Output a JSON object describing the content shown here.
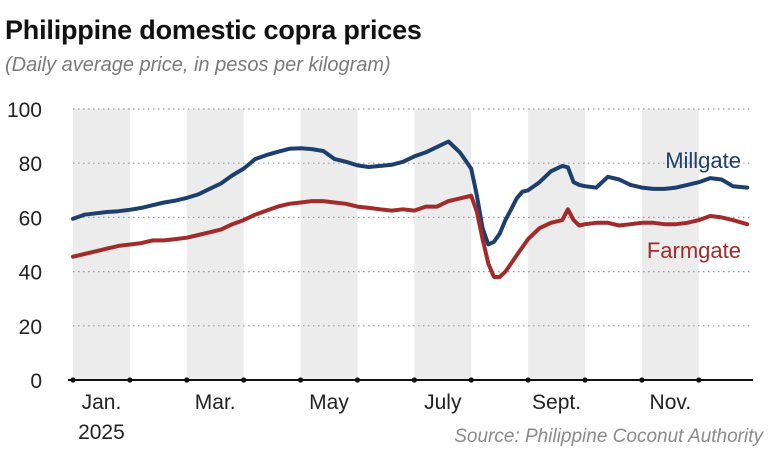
{
  "chart_data": {
    "type": "line",
    "title": "Philippine domestic copra prices",
    "subtitle": "(Daily average price, in pesos per kilogram)",
    "source": "Source: Philippine Coconut Authority",
    "ylim": [
      0,
      100
    ],
    "yticks": [
      0,
      20,
      40,
      60,
      80,
      100
    ],
    "xlim": [
      0,
      11.9
    ],
    "xticks": [
      {
        "label": "Jan.",
        "sublabel": "2025",
        "month": 0.5
      },
      {
        "label": "Mar.",
        "sublabel": "",
        "month": 2.5
      },
      {
        "label": "May",
        "sublabel": "",
        "month": 4.5
      },
      {
        "label": "July",
        "sublabel": "",
        "month": 6.5
      },
      {
        "label": "Sept.",
        "sublabel": "",
        "month": 8.5
      },
      {
        "label": "Nov.",
        "sublabel": "",
        "month": 10.5
      }
    ],
    "shaded_months": [
      0,
      2,
      4,
      6,
      8,
      10
    ],
    "grid": "horizontal-dotted",
    "series": [
      {
        "name": "Millgate",
        "color": "#1d3f6e",
        "x": [
          0,
          0.2,
          0.4,
          0.6,
          0.8,
          1.0,
          1.2,
          1.4,
          1.6,
          1.8,
          2.0,
          2.2,
          2.4,
          2.6,
          2.8,
          3.0,
          3.2,
          3.4,
          3.6,
          3.8,
          4.0,
          4.2,
          4.4,
          4.6,
          4.8,
          5.0,
          5.2,
          5.4,
          5.6,
          5.8,
          6.0,
          6.2,
          6.4,
          6.6,
          6.8,
          7.0,
          7.1,
          7.2,
          7.3,
          7.4,
          7.5,
          7.6,
          7.7,
          7.8,
          7.9,
          8.0,
          8.2,
          8.4,
          8.6,
          8.7,
          8.8,
          8.9,
          9.0,
          9.2,
          9.4,
          9.6,
          9.8,
          10.0,
          10.2,
          10.4,
          10.6,
          10.8,
          11.0,
          11.2,
          11.4,
          11.6,
          11.85
        ],
        "values": [
          59.5,
          61,
          61.5,
          62,
          62.3,
          62.8,
          63.5,
          64.5,
          65.5,
          66.2,
          67.2,
          68.5,
          70.5,
          72.5,
          75.5,
          78,
          81.5,
          83,
          84.2,
          85.3,
          85.5,
          85.2,
          84.5,
          81.5,
          80.5,
          79.2,
          78.6,
          79,
          79.4,
          80.5,
          82.5,
          84,
          86,
          88,
          84,
          78,
          68,
          56,
          50,
          51,
          54,
          59,
          63,
          67,
          69.5,
          70,
          73,
          77,
          79,
          78.5,
          73,
          72,
          71.5,
          71,
          75,
          74,
          72,
          71,
          70.5,
          70.5,
          71,
          72,
          73,
          74.5,
          74,
          71.5,
          71
        ]
      },
      {
        "name": "Farmgate",
        "color": "#a12b2b",
        "x": [
          0,
          0.2,
          0.4,
          0.6,
          0.8,
          1.0,
          1.2,
          1.4,
          1.6,
          1.8,
          2.0,
          2.2,
          2.4,
          2.6,
          2.8,
          3.0,
          3.2,
          3.4,
          3.6,
          3.8,
          4.0,
          4.2,
          4.4,
          4.6,
          4.8,
          5.0,
          5.2,
          5.4,
          5.6,
          5.8,
          6.0,
          6.2,
          6.4,
          6.6,
          6.8,
          7.0,
          7.1,
          7.2,
          7.3,
          7.4,
          7.5,
          7.6,
          7.7,
          7.8,
          7.9,
          8.0,
          8.2,
          8.4,
          8.6,
          8.7,
          8.8,
          8.9,
          9.0,
          9.2,
          9.4,
          9.6,
          9.8,
          10.0,
          10.2,
          10.4,
          10.6,
          10.8,
          11.0,
          11.2,
          11.4,
          11.6,
          11.85
        ],
        "values": [
          45.5,
          46.5,
          47.5,
          48.5,
          49.5,
          50,
          50.5,
          51.5,
          51.5,
          52,
          52.5,
          53.5,
          54.5,
          55.5,
          57.5,
          59,
          61,
          62.5,
          64,
          65,
          65.5,
          66,
          66,
          65.5,
          65,
          64,
          63.5,
          63,
          62.5,
          63,
          62.5,
          64,
          64,
          66,
          67,
          68,
          62,
          52,
          43,
          38,
          38,
          40,
          43,
          46,
          49,
          52,
          56,
          58,
          59,
          63,
          59,
          57,
          57.5,
          58,
          58,
          57,
          57.5,
          58,
          58,
          57.5,
          57.5,
          58,
          59,
          60.5,
          60,
          59,
          57.5
        ]
      }
    ]
  }
}
